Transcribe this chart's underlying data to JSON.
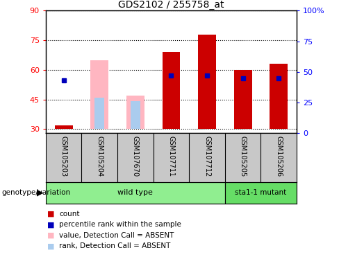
{
  "title": "GDS2102 / 255758_at",
  "samples": [
    "GSM105203",
    "GSM105204",
    "GSM107670",
    "GSM107711",
    "GSM107712",
    "GSM105205",
    "GSM105206"
  ],
  "count_values": [
    32,
    null,
    null,
    69,
    78,
    60,
    63
  ],
  "percentile_values": [
    43,
    null,
    null,
    47,
    47,
    45,
    45
  ],
  "absent_value_values": [
    null,
    65,
    47,
    null,
    null,
    null,
    null
  ],
  "absent_rank_values": [
    null,
    46,
    44,
    null,
    null,
    null,
    null
  ],
  "ylim_left": [
    28,
    90
  ],
  "ylim_right": [
    0,
    100
  ],
  "yticks_left": [
    30,
    45,
    60,
    75,
    90
  ],
  "yticks_right": [
    0,
    25,
    50,
    75,
    100
  ],
  "yticklabels_right": [
    "0",
    "25",
    "50",
    "75",
    "100%"
  ],
  "bar_bottom": 30,
  "count_color": "#CC0000",
  "percentile_color": "#0000BB",
  "absent_value_color": "#FFB6C1",
  "absent_rank_color": "#AACCEE",
  "bar_width": 0.5,
  "grid_color": "black",
  "plot_bg": "#FFFFFF",
  "sample_area_bg": "#C8C8C8",
  "wt_color": "#90EE90",
  "mut_color": "#66DD66",
  "legend_items": [
    {
      "label": "count",
      "color": "#CC0000"
    },
    {
      "label": "percentile rank within the sample",
      "color": "#0000BB"
    },
    {
      "label": "value, Detection Call = ABSENT",
      "color": "#FFB6C1"
    },
    {
      "label": "rank, Detection Call = ABSENT",
      "color": "#AACCEE"
    }
  ]
}
